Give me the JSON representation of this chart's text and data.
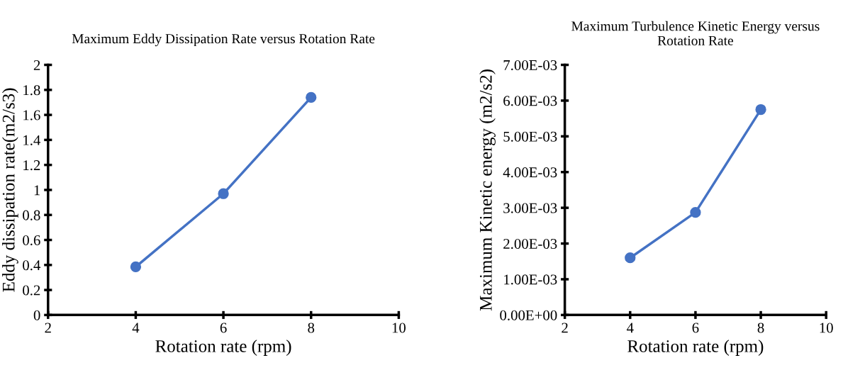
{
  "chart_data": [
    {
      "type": "line",
      "title": "Maximum Eddy Dissipation Rate versus Rotation Rate",
      "xlabel": "Rotation rate (rpm)",
      "ylabel": "Eddy dissipation rate(m2/s3)",
      "x": [
        4,
        6,
        8
      ],
      "series": [
        {
          "color": "#4472c4",
          "values": [
            0.385,
            0.97,
            1.74
          ]
        }
      ],
      "xlim": [
        2,
        10
      ],
      "xticks": [
        2,
        4,
        6,
        8,
        10
      ],
      "ylim": [
        0,
        2
      ],
      "yticks": [
        0,
        0.2,
        0.4,
        0.6,
        0.8,
        1,
        1.2,
        1.4,
        1.6,
        1.8,
        2
      ],
      "marker": "circle",
      "grid": false,
      "legend": false
    },
    {
      "type": "line",
      "title": "Maximum Turbulence Kinetic Energy versus Rotation Rate",
      "xlabel": "Rotation rate (rpm)",
      "ylabel": "Maximum Kinetic energy (m2/s2)",
      "x": [
        4,
        6,
        8
      ],
      "series": [
        {
          "color": "#4472c4",
          "values": [
            0.0016,
            0.00287,
            0.00575
          ]
        }
      ],
      "xlim": [
        2,
        10
      ],
      "xticks": [
        2,
        4,
        6,
        8,
        10
      ],
      "ylim": [
        0,
        0.007
      ],
      "yticks": [
        {
          "value": 0,
          "label": "0.00E+00"
        },
        {
          "value": 0.001,
          "label": "1.00E-03"
        },
        {
          "value": 0.002,
          "label": "2.00E-03"
        },
        {
          "value": 0.003,
          "label": "3.00E-03"
        },
        {
          "value": 0.004,
          "label": "4.00E-03"
        },
        {
          "value": 0.005,
          "label": "5.00E-03"
        },
        {
          "value": 0.006,
          "label": "6.00E-03"
        },
        {
          "value": 0.007,
          "label": "7.00E-03"
        }
      ],
      "marker": "circle",
      "grid": false,
      "legend": false
    }
  ]
}
